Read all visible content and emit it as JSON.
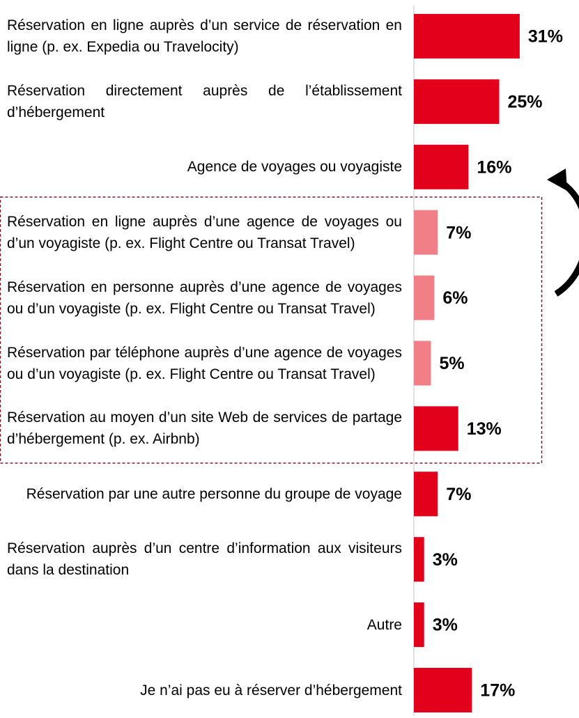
{
  "chart_data": {
    "type": "barh",
    "categories": [
      "Réservation en ligne auprès d’un service de réservation en ligne (p. ex. Expedia ou Travelocity)",
      "Réservation directement auprès de l’établissement d’hébergement",
      "Agence de voyages ou voyagiste",
      "Réservation en ligne auprès d’une agence de voyages ou d’un voyagiste (p. ex. Flight Centre ou Transat Travel)",
      "Réservation en personne auprès d’une agence de voyages ou d’un voyagiste (p. ex. Flight Centre ou Transat Travel)",
      "Réservation par téléphone auprès d’une agence de voyages ou d’un voyagiste (p. ex. Flight Centre ou Transat Travel)",
      "Réservation au moyen d’un site Web de services de partage d’hébergement (p. ex. Airbnb)",
      "Réservation par une autre personne du groupe de voyage",
      "Réservation auprès d’un centre d’information aux visiteurs dans la destination",
      "Autre",
      "Je n’ai pas eu à réserver d’hébergement"
    ],
    "values": [
      31,
      25,
      16,
      7,
      6,
      5,
      13,
      7,
      3,
      3,
      17
    ],
    "value_labels": [
      "31%",
      "25%",
      "16%",
      "7%",
      "6%",
      "5%",
      "13%",
      "7%",
      "3%",
      "3%",
      "17%"
    ],
    "colors": [
      "#e2001a",
      "#e2001a",
      "#e2001a",
      "#f07f87",
      "#f07f87",
      "#f07f87",
      "#e2001a",
      "#e2001a",
      "#e2001a",
      "#e2001a",
      "#e2001a"
    ]
  }
}
